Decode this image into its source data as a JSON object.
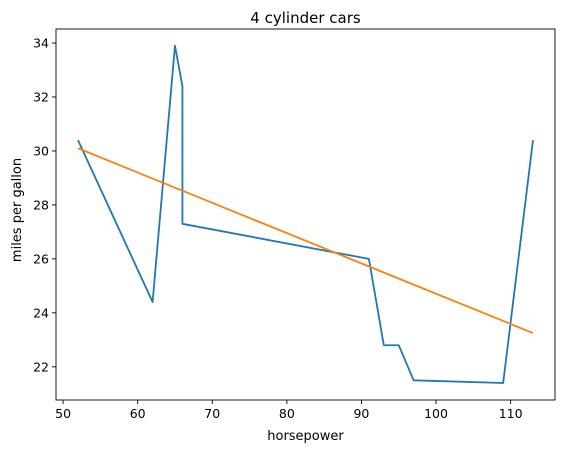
{
  "chart_data": {
    "type": "line",
    "title": "4 cylinder cars",
    "xlabel": "horsepower",
    "ylabel": "miles per gallon",
    "xlim": [
      49.05,
      115.95
    ],
    "ylim": [
      20.77,
      34.52
    ],
    "xticks": [
      50,
      60,
      70,
      80,
      90,
      100,
      110
    ],
    "yticks": [
      22,
      24,
      26,
      28,
      30,
      32,
      34
    ],
    "grid": false,
    "legend": "none",
    "series": [
      {
        "color": "#1f77b4",
        "x": [
          52,
          62,
          65,
          66,
          66,
          91,
          93,
          95,
          97,
          109,
          113
        ],
        "y": [
          30.4,
          24.4,
          33.9,
          32.4,
          27.3,
          26.0,
          22.8,
          22.8,
          21.5,
          21.4,
          30.4
        ]
      },
      {
        "color": "#ff7f0e",
        "x": [
          52,
          113
        ],
        "y": [
          30.1,
          23.25
        ]
      }
    ]
  }
}
